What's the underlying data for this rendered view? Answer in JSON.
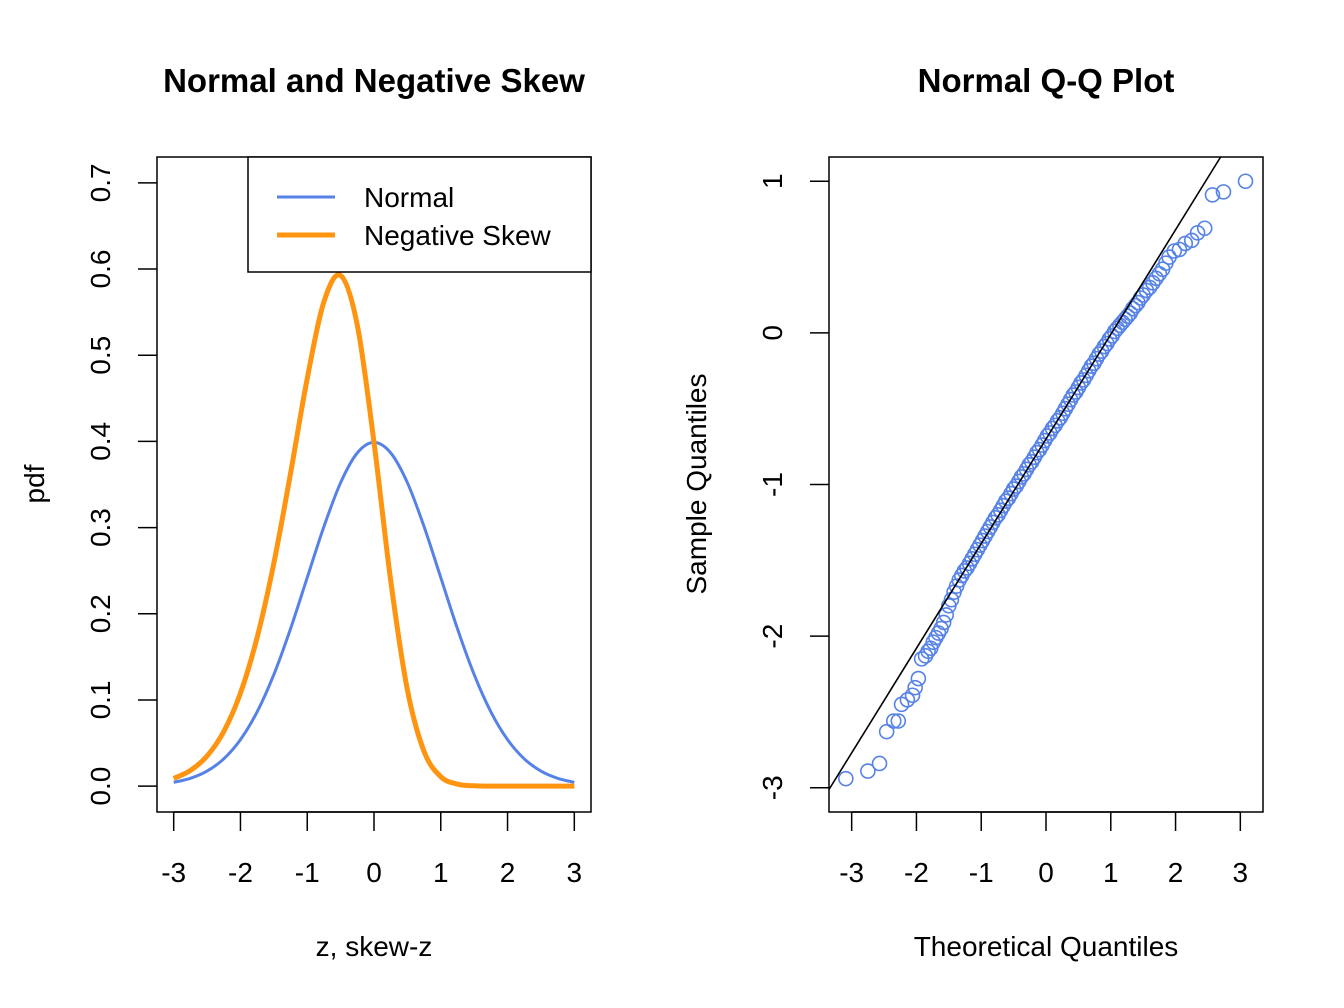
{
  "chart_data": [
    {
      "type": "line",
      "title": "Normal and Negative Skew",
      "xlabel": "z, skew-z",
      "ylabel": "pdf",
      "xlim": [
        -3.25,
        3.25
      ],
      "ylim": [
        -0.03,
        0.73
      ],
      "xticks": [
        "-3",
        "-2",
        "-1",
        "0",
        "1",
        "2",
        "3"
      ],
      "xtick_values": [
        -3,
        -2,
        -1,
        0,
        1,
        2,
        3
      ],
      "yticks": [
        "0.0",
        "0.1",
        "0.2",
        "0.3",
        "0.4",
        "0.5",
        "0.6",
        "0.7"
      ],
      "ytick_values": [
        0,
        0.1,
        0.2,
        0.3,
        0.4,
        0.5,
        0.6,
        0.7
      ],
      "legend": {
        "position": "top-right",
        "entries": [
          "Normal",
          "Negative Skew"
        ]
      },
      "x": [
        -3,
        -2.75,
        -2.5,
        -2.25,
        -2,
        -1.75,
        -1.5,
        -1.25,
        -1,
        -0.75,
        -0.5,
        -0.25,
        0,
        0.25,
        0.5,
        0.75,
        1,
        1.25,
        1.5,
        1.75,
        2,
        2.25,
        2.5,
        2.75,
        3
      ],
      "series": [
        {
          "name": "Normal",
          "color": "#5682e8",
          "values": [
            0.0044,
            0.0091,
            0.0175,
            0.0317,
            0.054,
            0.0863,
            0.1295,
            0.1826,
            0.242,
            0.3011,
            0.3521,
            0.3867,
            0.3989,
            0.3867,
            0.3521,
            0.3011,
            0.242,
            0.1826,
            0.1295,
            0.0863,
            0.054,
            0.0317,
            0.0175,
            0.0091,
            0.0044
          ]
        },
        {
          "name": "Negative Skew",
          "color": "#fe9410",
          "values": [
            0.0089,
            0.0182,
            0.035,
            0.0634,
            0.108,
            0.1726,
            0.2587,
            0.3629,
            0.473,
            0.562,
            0.5925,
            0.5348,
            0.3989,
            0.2386,
            0.1118,
            0.0402,
            0.011,
            0.0023,
            0.0004,
            0.0,
            0.0,
            0.0,
            0.0,
            0.0,
            0.0
          ]
        }
      ]
    },
    {
      "type": "scatter",
      "title": "Normal Q-Q Plot",
      "xlabel": "Theoretical Quantiles",
      "ylabel": "Sample Quantiles",
      "xlim": [
        -3.35,
        3.35
      ],
      "ylim": [
        -3.16,
        1.16
      ],
      "xticks": [
        "-3",
        "-2",
        "-1",
        "0",
        "1",
        "2",
        "3"
      ],
      "xtick_values": [
        -3,
        -2,
        -1,
        0,
        1,
        2,
        3
      ],
      "yticks": [
        "-3",
        "-2",
        "-1",
        "0",
        "1"
      ],
      "ytick_values": [
        -3,
        -2,
        -1,
        0,
        1
      ],
      "point_color": "#5682e8",
      "reference_line": {
        "intercept": -0.7,
        "slope": 0.69,
        "color": "#000000"
      },
      "points": [
        [
          -3.09,
          -2.94
        ],
        [
          -2.75,
          -2.89
        ],
        [
          -2.57,
          -2.84
        ],
        [
          -2.46,
          -2.63
        ],
        [
          -2.35,
          -2.56
        ],
        [
          -2.28,
          -2.56
        ],
        [
          -2.23,
          -2.45
        ],
        [
          -2.14,
          -2.42
        ],
        [
          -2.06,
          -2.39
        ],
        [
          -2.02,
          -2.34
        ],
        [
          -1.97,
          -2.28
        ],
        [
          -1.92,
          -2.15
        ],
        [
          -1.86,
          -2.13
        ],
        [
          -1.82,
          -2.1
        ],
        [
          -1.78,
          -2.08
        ],
        [
          -1.74,
          -2.04
        ],
        [
          -1.7,
          -2.01
        ],
        [
          -1.66,
          -1.98
        ],
        [
          -1.62,
          -1.95
        ],
        [
          -1.58,
          -1.91
        ],
        [
          -1.54,
          -1.86
        ],
        [
          -1.5,
          -1.8
        ],
        [
          -1.46,
          -1.76
        ],
        [
          -1.42,
          -1.71
        ],
        [
          -1.38,
          -1.67
        ],
        [
          -1.34,
          -1.63
        ],
        [
          -1.3,
          -1.6
        ],
        [
          -1.26,
          -1.57
        ],
        [
          -1.22,
          -1.55
        ],
        [
          -1.18,
          -1.52
        ],
        [
          -1.14,
          -1.49
        ],
        [
          -1.1,
          -1.46
        ],
        [
          -1.06,
          -1.43
        ],
        [
          -1.02,
          -1.4
        ],
        [
          -0.98,
          -1.37
        ],
        [
          -0.94,
          -1.34
        ],
        [
          -0.9,
          -1.31
        ],
        [
          -0.86,
          -1.28
        ],
        [
          -0.82,
          -1.25
        ],
        [
          -0.78,
          -1.22
        ],
        [
          -0.74,
          -1.2
        ],
        [
          -0.7,
          -1.17
        ],
        [
          -0.66,
          -1.14
        ],
        [
          -0.62,
          -1.11
        ],
        [
          -0.58,
          -1.09
        ],
        [
          -0.54,
          -1.06
        ],
        [
          -0.5,
          -1.03
        ],
        [
          -0.46,
          -1.01
        ],
        [
          -0.42,
          -0.98
        ],
        [
          -0.38,
          -0.95
        ],
        [
          -0.34,
          -0.93
        ],
        [
          -0.3,
          -0.9
        ],
        [
          -0.26,
          -0.87
        ],
        [
          -0.22,
          -0.85
        ],
        [
          -0.18,
          -0.82
        ],
        [
          -0.14,
          -0.79
        ],
        [
          -0.1,
          -0.77
        ],
        [
          -0.06,
          -0.74
        ],
        [
          -0.02,
          -0.71
        ],
        [
          0.02,
          -0.68
        ],
        [
          0.06,
          -0.66
        ],
        [
          0.1,
          -0.63
        ],
        [
          0.14,
          -0.61
        ],
        [
          0.18,
          -0.58
        ],
        [
          0.22,
          -0.56
        ],
        [
          0.26,
          -0.53
        ],
        [
          0.3,
          -0.5
        ],
        [
          0.34,
          -0.47
        ],
        [
          0.38,
          -0.44
        ],
        [
          0.42,
          -0.41
        ],
        [
          0.46,
          -0.39
        ],
        [
          0.5,
          -0.36
        ],
        [
          0.54,
          -0.33
        ],
        [
          0.58,
          -0.31
        ],
        [
          0.62,
          -0.28
        ],
        [
          0.66,
          -0.25
        ],
        [
          0.7,
          -0.22
        ],
        [
          0.74,
          -0.2
        ],
        [
          0.78,
          -0.17
        ],
        [
          0.82,
          -0.14
        ],
        [
          0.86,
          -0.12
        ],
        [
          0.9,
          -0.09
        ],
        [
          0.94,
          -0.07
        ],
        [
          0.98,
          -0.04
        ],
        [
          1.02,
          -0.02
        ],
        [
          1.06,
          0.01
        ],
        [
          1.1,
          0.03
        ],
        [
          1.14,
          0.05
        ],
        [
          1.18,
          0.07
        ],
        [
          1.22,
          0.09
        ],
        [
          1.26,
          0.11
        ],
        [
          1.3,
          0.13
        ],
        [
          1.34,
          0.16
        ],
        [
          1.38,
          0.18
        ],
        [
          1.42,
          0.2
        ],
        [
          1.46,
          0.23
        ],
        [
          1.5,
          0.25
        ],
        [
          1.55,
          0.28
        ],
        [
          1.6,
          0.3
        ],
        [
          1.65,
          0.33
        ],
        [
          1.7,
          0.36
        ],
        [
          1.75,
          0.39
        ],
        [
          1.8,
          0.42
        ],
        [
          1.85,
          0.46
        ],
        [
          1.9,
          0.5
        ],
        [
          1.98,
          0.54
        ],
        [
          2.06,
          0.55
        ],
        [
          2.15,
          0.59
        ],
        [
          2.25,
          0.61
        ],
        [
          2.34,
          0.66
        ],
        [
          2.45,
          0.69
        ],
        [
          2.57,
          0.91
        ],
        [
          2.74,
          0.93
        ],
        [
          3.08,
          1.0
        ]
      ]
    }
  ]
}
